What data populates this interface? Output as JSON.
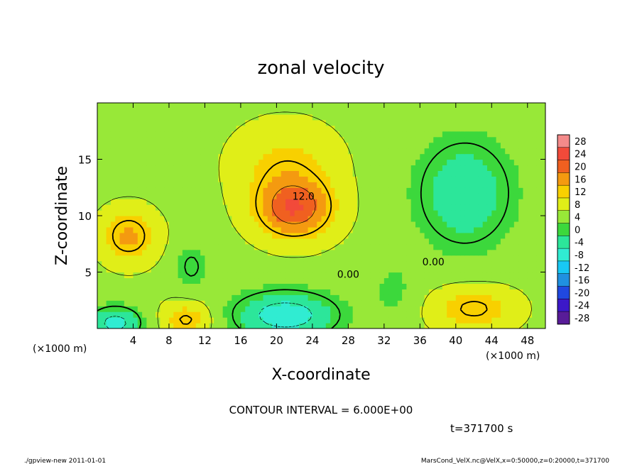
{
  "chart_data": {
    "type": "heatmap",
    "title": "zonal velocity",
    "xlabel": "X-coordinate",
    "ylabel": "Z-coordinate",
    "x_unit_left": "(×1000 m)",
    "x_unit_right": "(×1000 m)",
    "xlim": [
      0,
      50
    ],
    "ylim": [
      0,
      20
    ],
    "x_ticks": [
      4,
      8,
      12,
      16,
      20,
      24,
      28,
      32,
      36,
      40,
      44,
      48
    ],
    "y_ticks": [
      5,
      10,
      15
    ],
    "colorbar_ticks": [
      28,
      24,
      20,
      16,
      12,
      8,
      4,
      0,
      -4,
      -8,
      -12,
      -16,
      -20,
      -24,
      -28
    ],
    "contour_labels": [
      {
        "text": "12.0",
        "x": 23,
        "y": 11.4
      },
      {
        "text": "0.00",
        "x": 28,
        "y": 4.5
      },
      {
        "text": "0.00",
        "x": 37.5,
        "y": 5.6
      }
    ],
    "contour_interval_text": "CONTOUR INTERVAL = 6.000E+00",
    "time_text": "t=371700 s",
    "footer_left": "./gpview-new  2011-01-01",
    "footer_right": "MarsCond_VelX.nc@VelX,x=0:50000,z=0:20000,t=371700",
    "field_blobs": [
      {
        "x": 22,
        "y": 10.6,
        "sx": 4.2,
        "sy": 2.6,
        "amp": 16
      },
      {
        "x": 21,
        "y": 14.5,
        "sx": 5.5,
        "sy": 3.5,
        "amp": 6
      },
      {
        "x": 3.5,
        "y": 8.2,
        "sx": 3.0,
        "sy": 2.3,
        "amp": 10
      },
      {
        "x": 42,
        "y": 1.8,
        "sx": 4.5,
        "sy": 2.0,
        "amp": 8
      },
      {
        "x": 10,
        "y": 0.8,
        "sx": 2.8,
        "sy": 1.6,
        "amp": 8
      },
      {
        "x": 41,
        "y": 12,
        "sx": 5.5,
        "sy": 5,
        "amp": -11
      },
      {
        "x": 21,
        "y": 1.2,
        "sx": 6,
        "sy": 2.2,
        "amp": -14
      },
      {
        "x": 2,
        "y": 0.5,
        "sx": 3,
        "sy": 1.5,
        "amp": -13
      },
      {
        "x": 10.5,
        "y": 5.5,
        "sx": 1.8,
        "sy": 2.0,
        "amp": -6
      },
      {
        "x": 33,
        "y": 3.5,
        "sx": 2.5,
        "sy": 2.5,
        "amp": -4
      }
    ],
    "field_base": 5,
    "colors": {
      "28": "#f48a8a",
      "24": "#f24a3a",
      "20": "#f06020",
      "16": "#f49a10",
      "12": "#f8d000",
      "8": "#e0ee18",
      "4": "#98e838",
      "0": "#3cd83c",
      "-4": "#2ce69a",
      "-8": "#30ecd2",
      "-12": "#18c8f4",
      "-16": "#2090e0",
      "-20": "#2048e0",
      "-24": "#3c18c8",
      "-28": "#581c98"
    }
  }
}
